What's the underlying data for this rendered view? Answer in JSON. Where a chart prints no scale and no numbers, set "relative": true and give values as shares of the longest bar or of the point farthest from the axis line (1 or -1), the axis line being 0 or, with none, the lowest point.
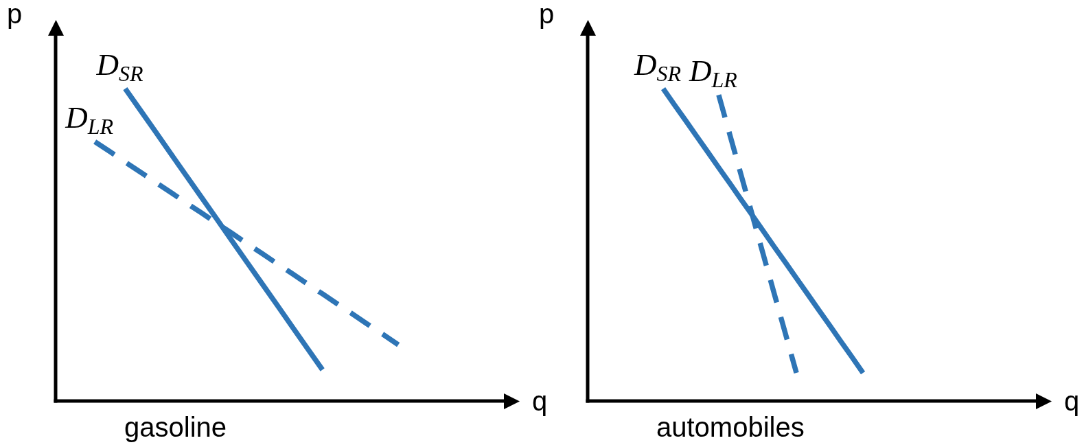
{
  "chart_data": [
    {
      "type": "line",
      "title": "gasoline",
      "xlabel": "q",
      "ylabel": "p",
      "relative": true,
      "marker": "none",
      "categories": [
        null,
        null,
        null,
        null,
        null,
        null,
        null,
        null,
        null,
        null,
        null,
        null,
        null,
        null,
        null,
        null,
        null,
        null,
        null,
        null,
        null,
        null,
        null,
        null,
        null,
        null,
        null,
        null,
        null,
        null,
        null
      ],
      "series": [
        {
          "name": "D$_{SR}$",
          "color": "#2e75b6",
          "line_style": "solid",
          "values": [
            null,
            null,
            null,
            null,
            1,
            0.931,
            0.862,
            0.792,
            0.723,
            0.654,
            0.585,
            0.515,
            0.446,
            0.377,
            0.308,
            0.238,
            0.169,
            0.1,
            null,
            null,
            null,
            null,
            null,
            null,
            null,
            null,
            null,
            null,
            null,
            null,
            null
          ]
        },
        {
          "name": "D$_{LR}$",
          "color": "#2e75b6",
          "line_style": "dashed",
          "values": [
            null,
            null,
            0.83,
            0.798,
            0.765,
            0.733,
            0.7,
            0.668,
            0.635,
            0.603,
            0.57,
            0.538,
            0.505,
            0.473,
            0.44,
            0.408,
            0.375,
            0.343,
            0.31,
            0.278,
            0.245,
            0.213,
            0.18,
            null,
            null,
            null,
            null,
            null,
            null,
            null,
            null
          ]
        }
      ]
    },
    {
      "type": "line",
      "title": "automobiles",
      "xlabel": "q",
      "ylabel": "p",
      "relative": true,
      "marker": "none",
      "categories": [
        null,
        null,
        null,
        null,
        null,
        null,
        null,
        null,
        null,
        null,
        null,
        null,
        null,
        null,
        null,
        null,
        null,
        null,
        null,
        null,
        null,
        null,
        null,
        null,
        null,
        null,
        null,
        null,
        null,
        null,
        null,
        null,
        null,
        null,
        null,
        null,
        null,
        null,
        null,
        null,
        null,
        null
      ],
      "series": [
        {
          "name": "D$_{SR}$",
          "color": "#2e75b6",
          "line_style": "solid",
          "values": [
            null,
            null,
            null,
            null,
            null,
            null,
            1,
            0.949,
            0.899,
            0.848,
            0.798,
            0.747,
            0.697,
            0.646,
            0.596,
            0.545,
            0.494,
            0.444,
            0.393,
            0.343,
            0.292,
            0.242,
            0.191,
            0.141,
            0.09,
            null,
            null,
            null,
            null,
            null,
            null,
            null,
            null,
            null,
            null,
            null,
            null,
            null,
            null,
            null,
            null,
            null
          ]
        },
        {
          "name": "D$_{LR}$",
          "color": "#2e75b6",
          "line_style": "dashed",
          "values": [
            null,
            null,
            null,
            null,
            null,
            null,
            null,
            null,
            null,
            null,
            null,
            0.98,
            0.853,
            0.726,
            0.599,
            0.471,
            0.344,
            0.217,
            0.09,
            null,
            null,
            null,
            null,
            null,
            null,
            null,
            null,
            null,
            null,
            null,
            null,
            null,
            null,
            null,
            null,
            null,
            null,
            null,
            null,
            null,
            null,
            null
          ]
        }
      ]
    }
  ]
}
